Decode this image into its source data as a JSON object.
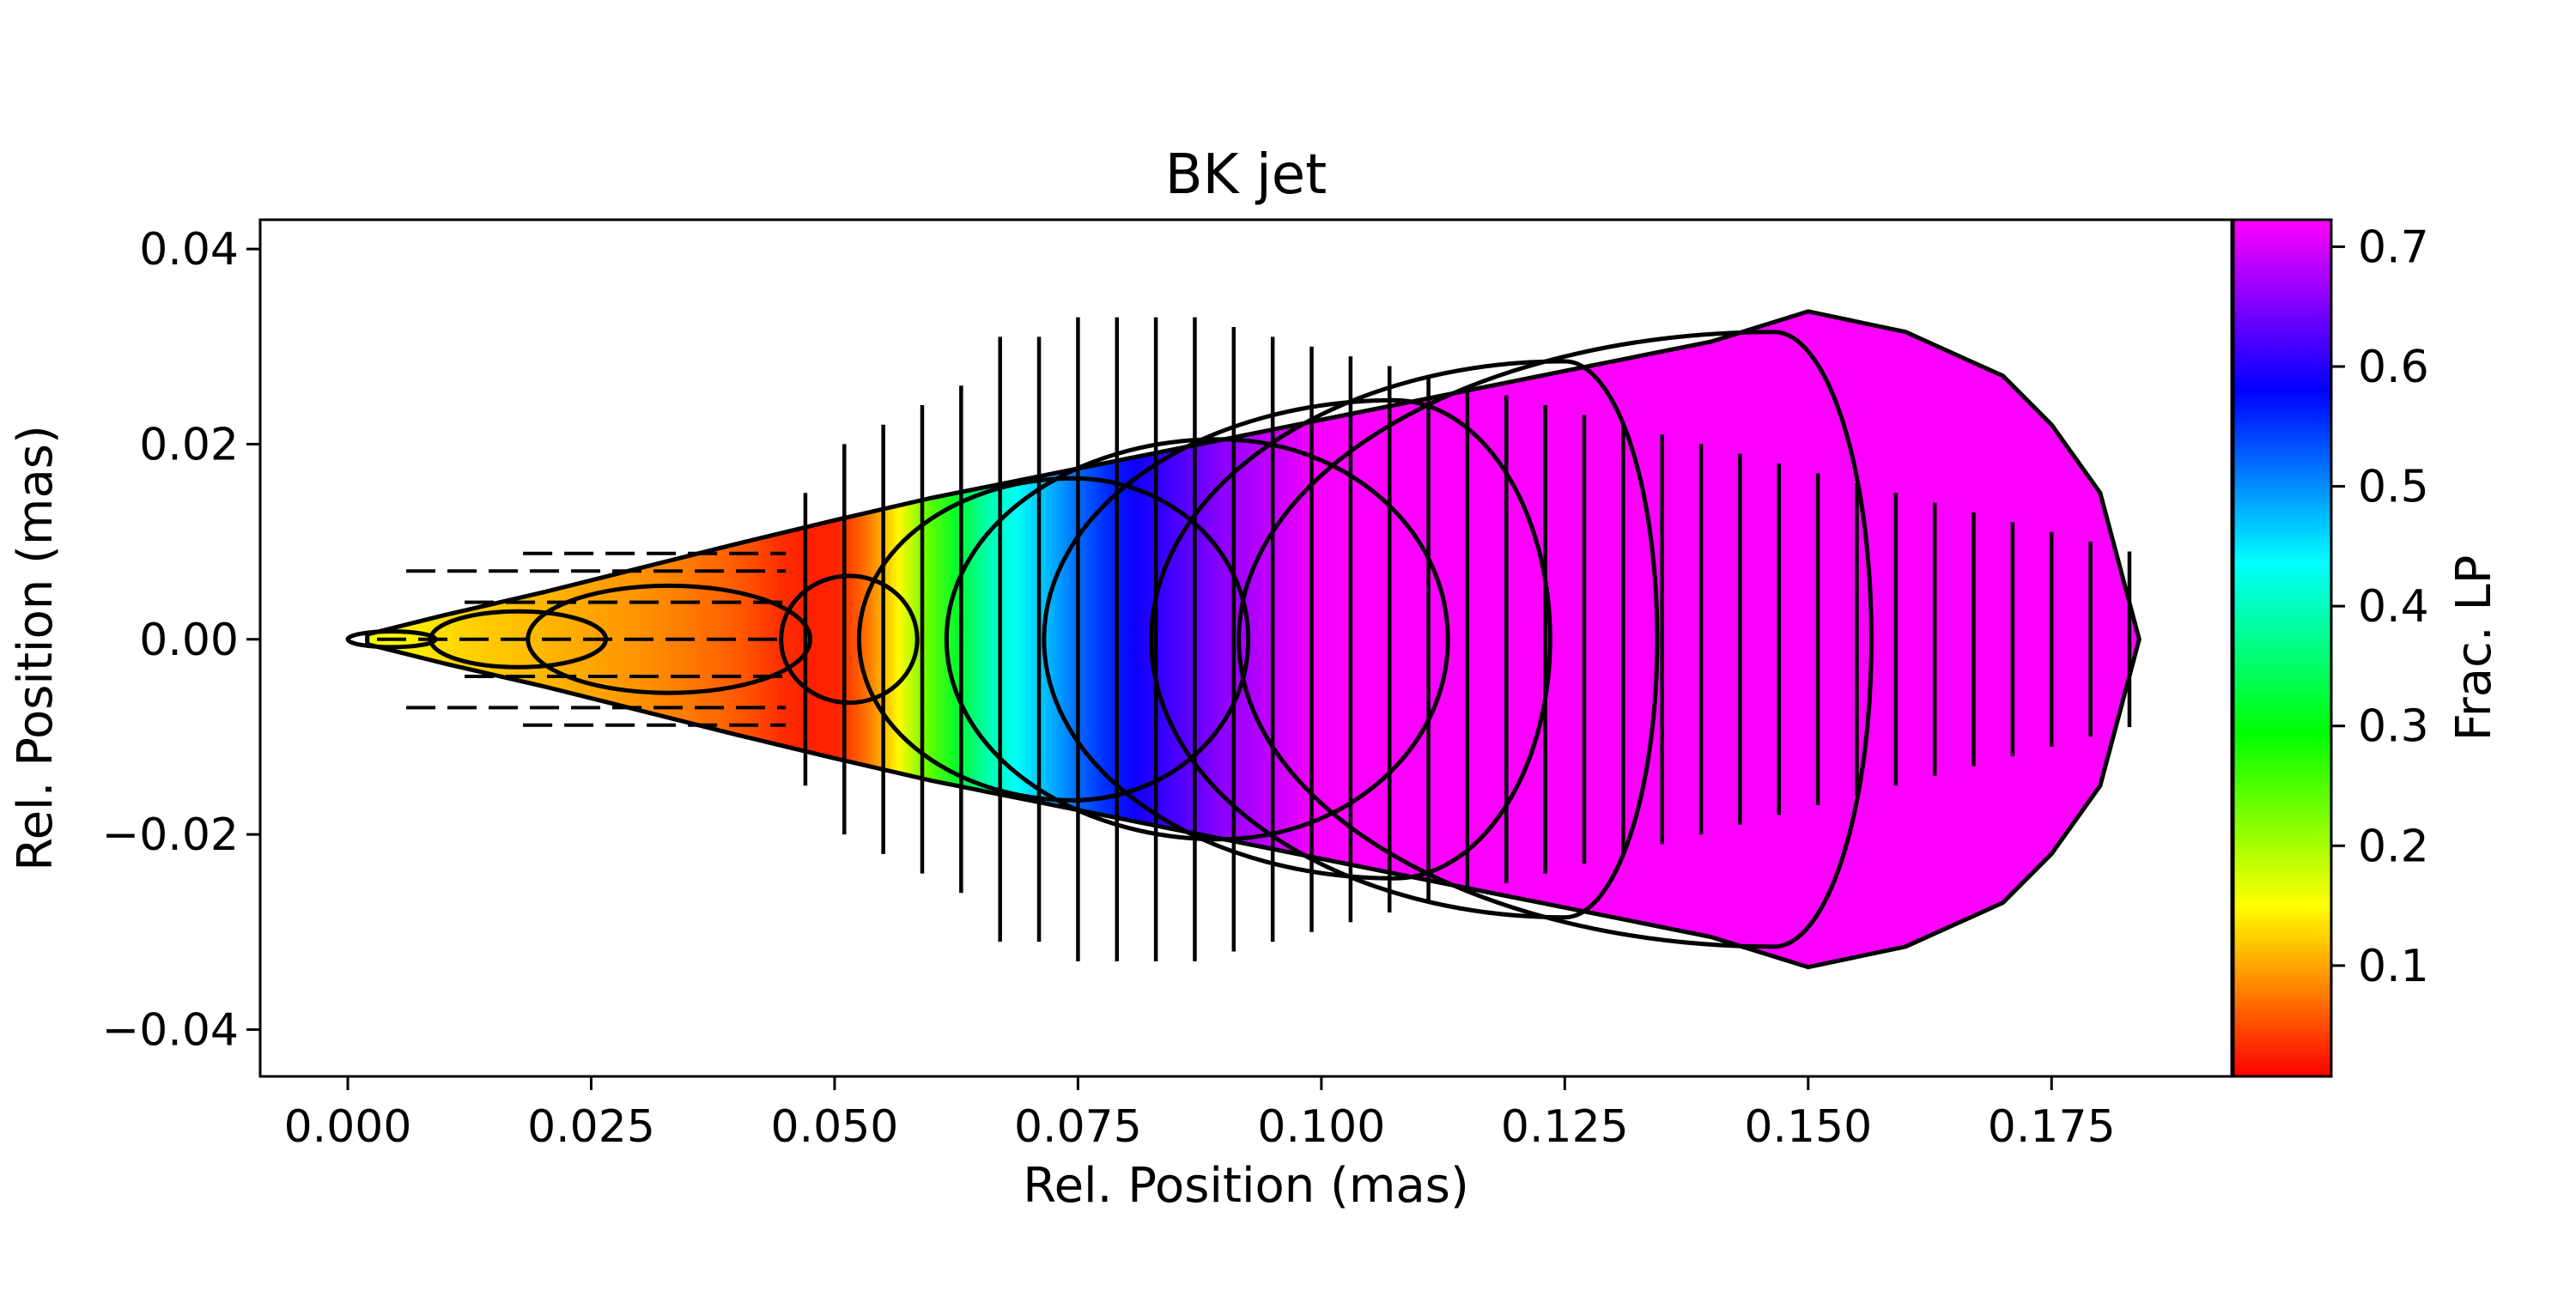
{
  "chart_data": {
    "type": "heatmap",
    "title": "BK jet",
    "xlabel": "Rel. Position (mas)",
    "ylabel": "Rel. Position (mas)",
    "xlim": [
      -0.009,
      0.1935
    ],
    "ylim": [
      -0.0448,
      0.043
    ],
    "xticks": [
      0.0,
      0.025,
      0.05,
      0.075,
      0.1,
      0.125,
      0.15,
      0.175
    ],
    "xtick_labels": [
      "0.000",
      "0.025",
      "0.050",
      "0.075",
      "0.100",
      "0.125",
      "0.150",
      "0.175"
    ],
    "yticks": [
      0.04,
      0.02,
      0.0,
      -0.02,
      -0.04
    ],
    "ytick_labels": [
      "0.04",
      "0.02",
      "0.00",
      "−0.02",
      "−0.04"
    ],
    "colorbar": {
      "label": "Frac. LP",
      "colormap": "gist_rainbow_r",
      "range": [
        0.0075,
        0.7225
      ],
      "ticks": [
        0.1,
        0.2,
        0.3,
        0.4,
        0.5,
        0.6,
        0.7
      ],
      "tick_labels": [
        "0.1",
        "0.2",
        "0.3",
        "0.4",
        "0.5",
        "0.6",
        "0.7"
      ]
    },
    "frac_lp_profile": {
      "x": [
        0.002,
        0.01,
        0.02,
        0.03,
        0.04,
        0.045,
        0.05,
        0.055,
        0.06,
        0.065,
        0.07,
        0.075,
        0.08,
        0.085,
        0.09,
        0.1,
        0.185
      ],
      "value": [
        0.16,
        0.13,
        0.11,
        0.09,
        0.06,
        0.03,
        0.02,
        0.1,
        0.25,
        0.38,
        0.45,
        0.52,
        0.58,
        0.62,
        0.66,
        0.72,
        0.72
      ]
    },
    "jet_boundary": {
      "x": [
        0.002,
        0.01,
        0.02,
        0.03,
        0.04,
        0.05,
        0.06,
        0.07,
        0.08,
        0.09,
        0.1,
        0.11,
        0.12,
        0.13,
        0.14,
        0.15,
        0.16,
        0.17,
        0.175,
        0.18,
        0.184
      ],
      "half_width": [
        0.0005,
        0.0025,
        0.0048,
        0.0073,
        0.0098,
        0.0122,
        0.0145,
        0.0165,
        0.0185,
        0.0205,
        0.0225,
        0.0245,
        0.0265,
        0.0285,
        0.0305,
        0.0336,
        0.0315,
        0.027,
        0.022,
        0.015,
        0.0
      ]
    },
    "intensity_contours": [
      {
        "x0": 0.0,
        "x_center": 0.0045,
        "x1": 0.009
      },
      {
        "x0": 0.0085,
        "x_center": 0.0175,
        "x1": 0.0265
      },
      {
        "x0": 0.0185,
        "x_center": 0.033,
        "x1": 0.0475
      },
      {
        "x0": 0.0445,
        "x_center": 0.0515,
        "x1": 0.0585,
        "half_height": 0.0065
      },
      {
        "x0": 0.0525,
        "x_center": 0.0745,
        "x1": 0.0925,
        "half_height": 0.0165
      },
      {
        "x0": 0.0615,
        "x_center": 0.0895,
        "x1": 0.113,
        "half_height": 0.0205
      },
      {
        "x0": 0.0715,
        "x_center": 0.1075,
        "x1": 0.1235,
        "half_height": 0.0245
      },
      {
        "x0": 0.0825,
        "x_center": 0.125,
        "x1": 0.1345,
        "half_height": 0.0285
      },
      {
        "x0": 0.0915,
        "x_center": 0.1465,
        "x1": 0.1565,
        "half_height": 0.0315
      }
    ],
    "evpa_ticks": {
      "x_start": 0.047,
      "x_step": 0.004,
      "x_end": 0.183,
      "orientation": "vertical",
      "half_length": [
        0.015,
        0.02,
        0.022,
        0.024,
        0.026,
        0.031,
        0.031,
        0.033,
        0.033,
        0.033,
        0.033,
        0.032,
        0.031,
        0.03,
        0.029,
        0.028,
        0.027,
        0.026,
        0.025,
        0.024,
        0.023,
        0.022,
        0.021,
        0.02,
        0.019,
        0.018,
        0.017,
        0.016,
        0.015,
        0.014,
        0.013,
        0.012,
        0.011,
        0.01,
        0.009
      ]
    },
    "grid": false,
    "legend": "none"
  }
}
